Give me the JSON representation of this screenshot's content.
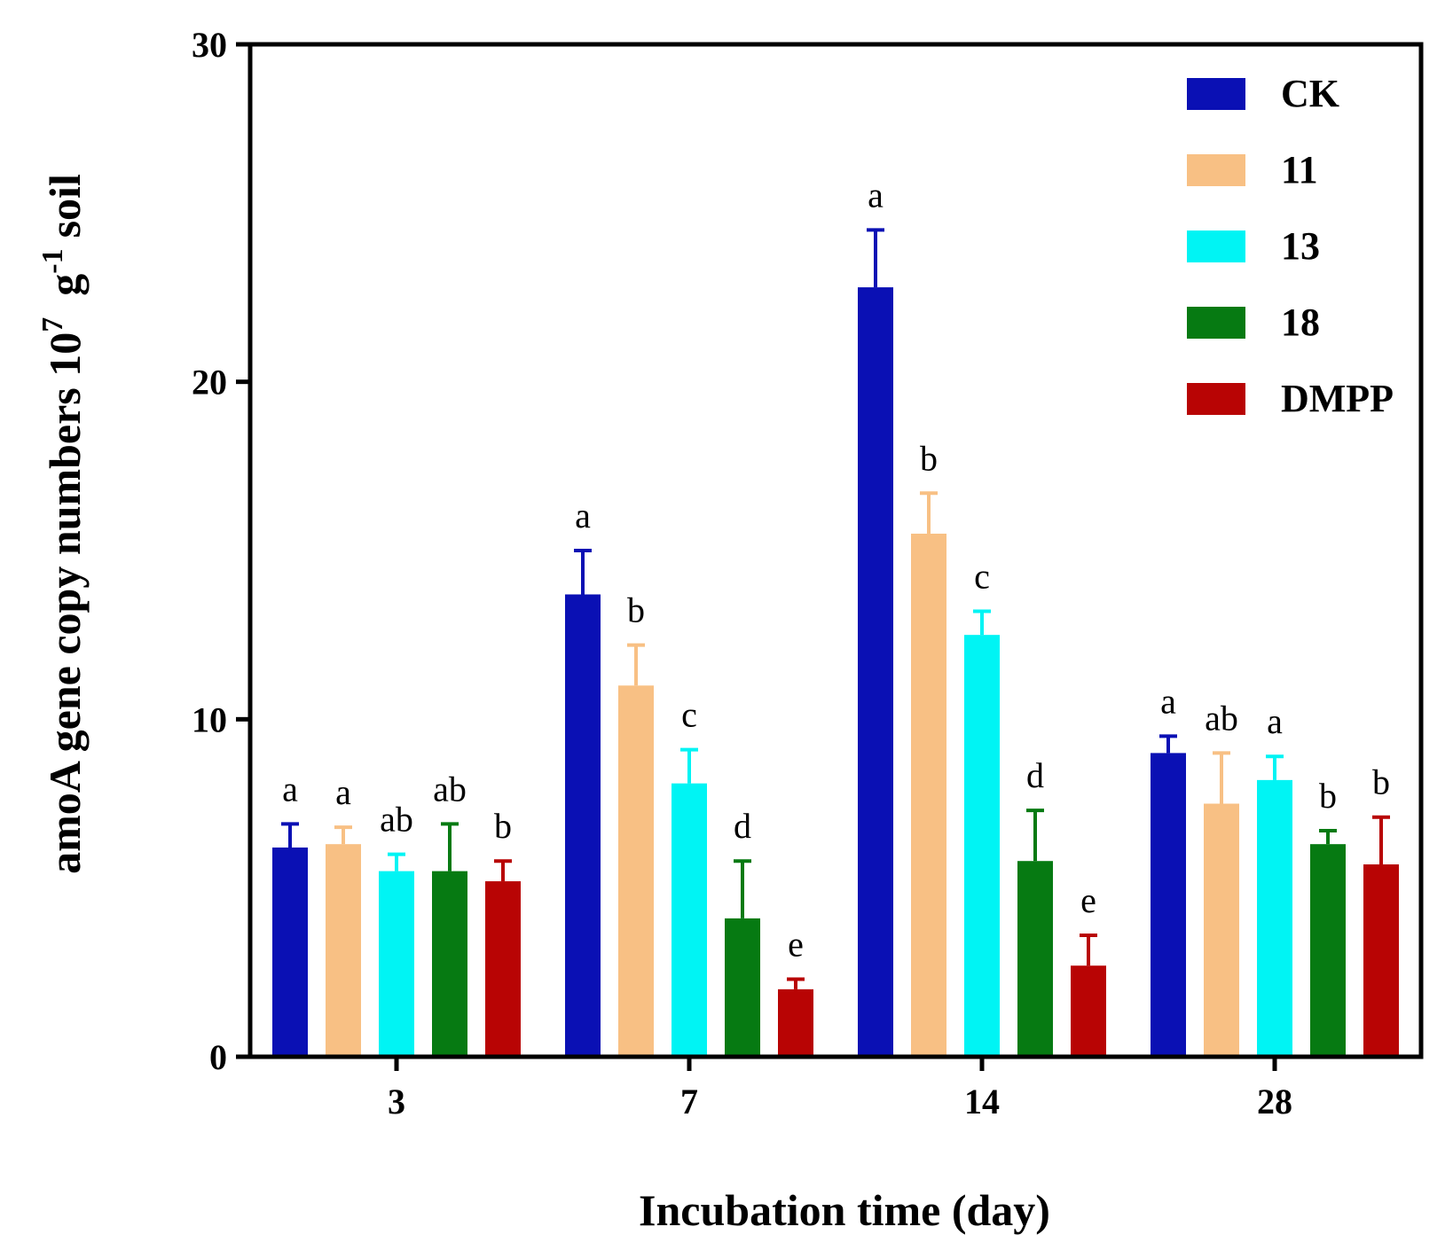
{
  "chart_data": {
    "type": "bar",
    "title": "",
    "xlabel": "Incubation time (day)",
    "ylabel": {
      "main": "amoA gene copy numbers 10",
      "exp1": "7",
      "mid": "g",
      "exp2": "-1",
      "tail": "soil"
    },
    "ylim": [
      0,
      30
    ],
    "yticks": [
      "0",
      "10",
      "20",
      "30"
    ],
    "categories": [
      "3",
      "7",
      "14",
      "28"
    ],
    "legend_position": "top-right",
    "series": [
      {
        "name": "CK",
        "color": "#0a10b4",
        "values": [
          6.2,
          13.7,
          22.8,
          9.0
        ],
        "errors": [
          0.7,
          1.3,
          1.7,
          0.5
        ],
        "letters": [
          "a",
          "a",
          "a",
          "a"
        ]
      },
      {
        "name": "11",
        "color": "#f8c084",
        "values": [
          6.3,
          11.0,
          15.5,
          7.5
        ],
        "errors": [
          0.5,
          1.2,
          1.2,
          1.5
        ],
        "letters": [
          "a",
          "b",
          "b",
          "ab"
        ]
      },
      {
        "name": "13",
        "color": "#00f4f4",
        "values": [
          5.5,
          8.1,
          12.5,
          8.2
        ],
        "errors": [
          0.5,
          1.0,
          0.7,
          0.7
        ],
        "letters": [
          "ab",
          "c",
          "c",
          "a"
        ]
      },
      {
        "name": "18",
        "color": "#067a12",
        "values": [
          5.5,
          4.1,
          5.8,
          6.3
        ],
        "errors": [
          1.4,
          1.7,
          1.5,
          0.4
        ],
        "letters": [
          "ab",
          "d",
          "d",
          "b"
        ]
      },
      {
        "name": "DMPP",
        "color": "#b80404",
        "values": [
          5.2,
          2.0,
          2.7,
          5.7
        ],
        "errors": [
          0.6,
          0.3,
          0.9,
          1.4
        ],
        "letters": [
          "b",
          "e",
          "e",
          "b"
        ]
      }
    ]
  }
}
